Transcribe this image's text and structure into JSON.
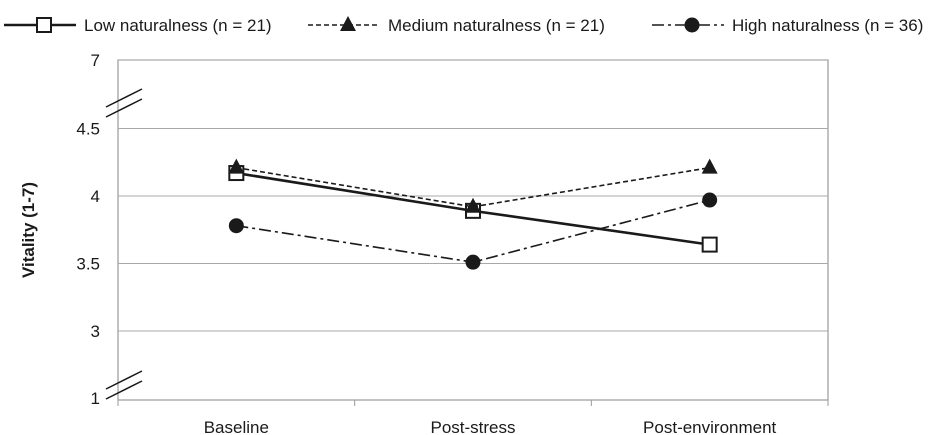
{
  "chart_data": {
    "type": "line",
    "categories": [
      "Baseline",
      "Post-stress",
      "Post-environment"
    ],
    "ylabel": "Vitality (1-7)",
    "yticks": [
      1,
      3,
      3.5,
      4,
      4.5,
      7
    ],
    "ytick_labels": [
      "1",
      "3",
      "3.5",
      "4",
      "4.5",
      "7"
    ],
    "y_axis_break": true,
    "grid": true,
    "legend_position": "top",
    "series": [
      {
        "name": "Low naturalness (n = 21)",
        "values": [
          4.17,
          3.89,
          3.64
        ],
        "marker": "open-square",
        "line_style": "solid",
        "color": "#1a1a1a"
      },
      {
        "name": "Medium naturalness (n = 21)",
        "values": [
          4.21,
          3.92,
          4.21
        ],
        "marker": "filled-triangle",
        "line_style": "dashed",
        "color": "#1a1a1a"
      },
      {
        "name": "High naturalness (n = 36)",
        "values": [
          3.78,
          3.51,
          3.97
        ],
        "marker": "filled-circle",
        "line_style": "dash-dot",
        "color": "#1a1a1a"
      }
    ]
  }
}
